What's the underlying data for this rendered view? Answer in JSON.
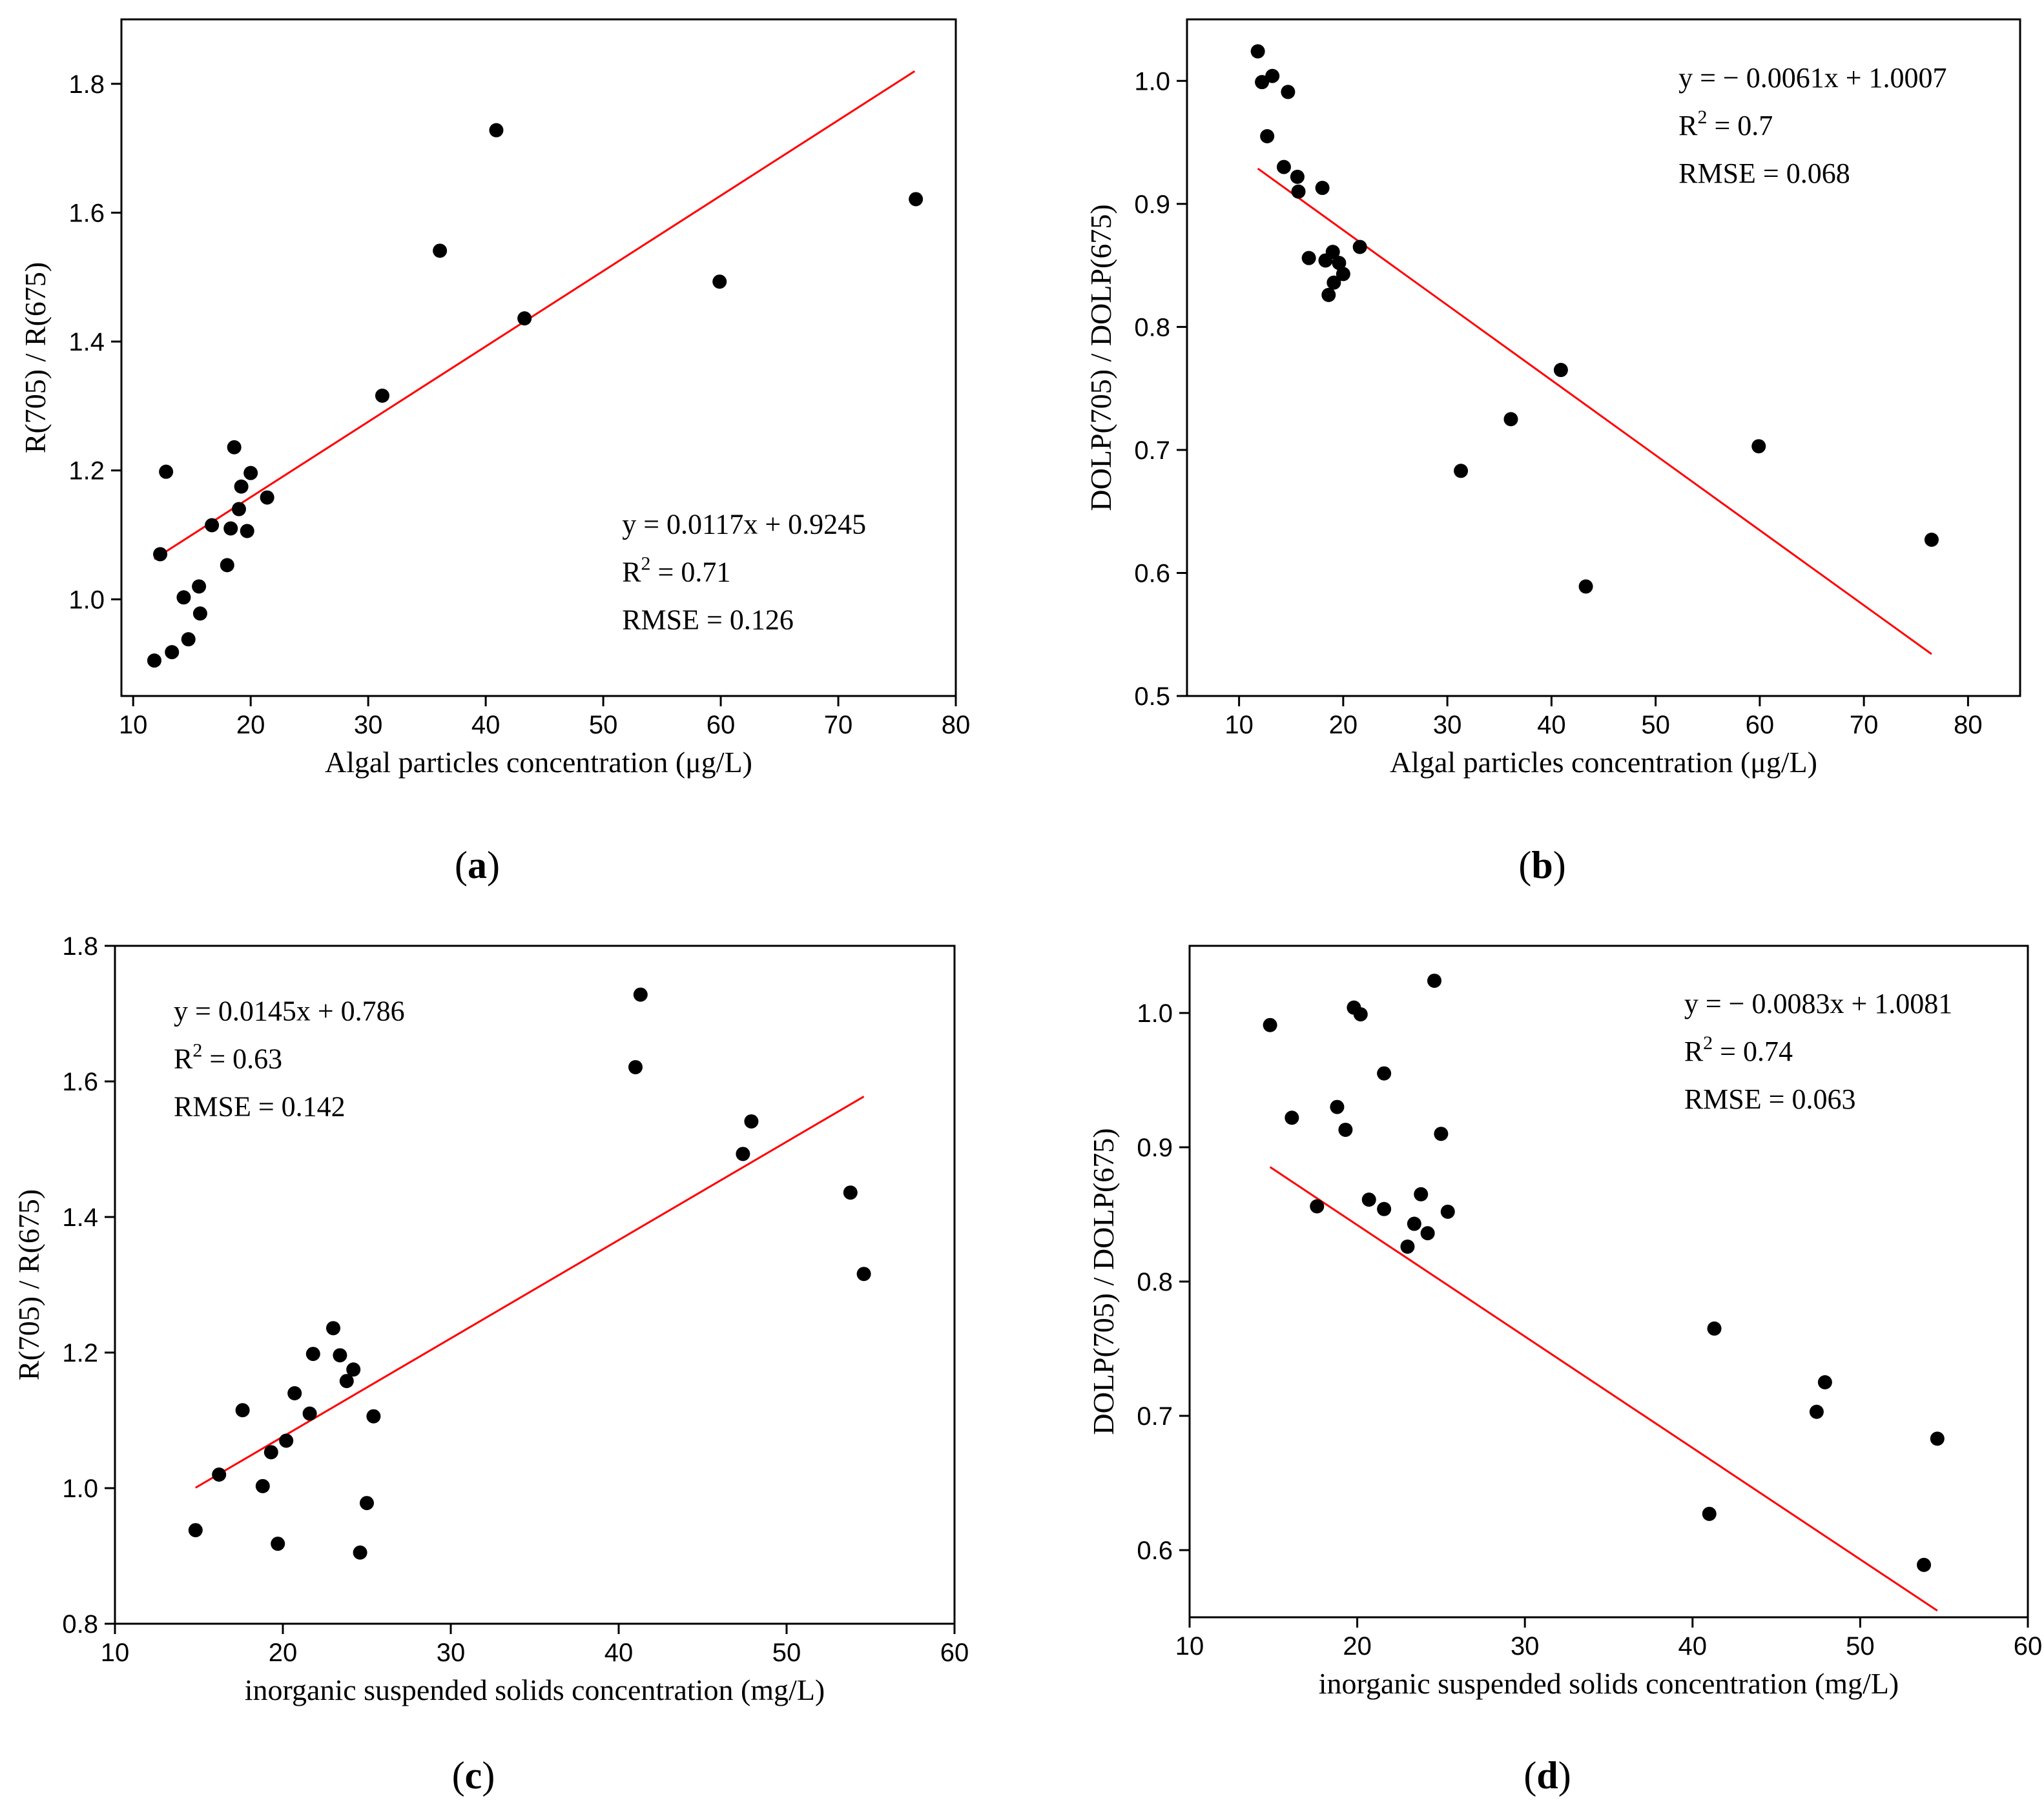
{
  "chart_data": [
    {
      "type": "scatter",
      "panel_label": "a",
      "xlabel": "Algal particles concentration (μg/L)",
      "ylabel": "R(705) / R(675)",
      "xlim": [
        9,
        80
      ],
      "ylim": [
        0.85,
        1.9
      ],
      "xticks": [
        10,
        20,
        30,
        40,
        50,
        60,
        70,
        80
      ],
      "yticks": [
        1.0,
        1.2,
        1.4,
        1.6,
        1.8
      ],
      "ytick_decimals": 1,
      "marker_color": "#000000",
      "line_color": "#ff0000",
      "annotation_position": "bottom-right",
      "annotations": {
        "equation": "y = 0.0117x + 0.9245",
        "r2_prefix": "R",
        "r2_sup": "2",
        "r2_value": " = 0.71",
        "rmse": "RMSE = 0.126"
      },
      "fit_line": {
        "slope": 0.0117,
        "intercept": 0.9245,
        "x_range": [
          11.8,
          76.5
        ]
      },
      "points": [
        {
          "x": 11.8,
          "y": 0.905
        },
        {
          "x": 12.3,
          "y": 1.07
        },
        {
          "x": 12.8,
          "y": 1.198
        },
        {
          "x": 13.3,
          "y": 0.918
        },
        {
          "x": 14.3,
          "y": 1.003
        },
        {
          "x": 14.7,
          "y": 0.938
        },
        {
          "x": 15.6,
          "y": 1.02
        },
        {
          "x": 15.7,
          "y": 0.978
        },
        {
          "x": 16.7,
          "y": 1.115
        },
        {
          "x": 18.0,
          "y": 1.053
        },
        {
          "x": 18.3,
          "y": 1.11
        },
        {
          "x": 18.6,
          "y": 1.236
        },
        {
          "x": 19.0,
          "y": 1.14
        },
        {
          "x": 19.2,
          "y": 1.175
        },
        {
          "x": 19.7,
          "y": 1.106
        },
        {
          "x": 20.0,
          "y": 1.196
        },
        {
          "x": 21.4,
          "y": 1.158
        },
        {
          "x": 31.2,
          "y": 1.316
        },
        {
          "x": 36.1,
          "y": 1.541
        },
        {
          "x": 40.9,
          "y": 1.728
        },
        {
          "x": 43.3,
          "y": 1.436
        },
        {
          "x": 59.9,
          "y": 1.493
        },
        {
          "x": 76.6,
          "y": 1.621
        }
      ]
    },
    {
      "type": "scatter",
      "panel_label": "b",
      "xlabel": "Algal particles concentration (μg/L)",
      "ylabel": "DOLP(705) / DOLP(675)",
      "xlim": [
        5,
        85
      ],
      "ylim": [
        0.5,
        1.05
      ],
      "xticks": [
        10,
        20,
        30,
        40,
        50,
        60,
        70,
        80
      ],
      "yticks": [
        0.5,
        0.6,
        0.7,
        0.8,
        0.9,
        1.0
      ],
      "ytick_decimals": 1,
      "marker_color": "#000000",
      "line_color": "#ff0000",
      "annotation_position": "top-right",
      "annotations": {
        "equation": "y = − 0.0061x + 1.0007",
        "r2_prefix": "R",
        "r2_sup": "2",
        "r2_value": " = 0.7",
        "rmse": "RMSE = 0.068"
      },
      "fit_line": {
        "slope": -0.0061,
        "intercept": 1.0007,
        "x_range": [
          11.8,
          76.5
        ]
      },
      "points": [
        {
          "x": 11.8,
          "y": 1.024
        },
        {
          "x": 12.2,
          "y": 0.999
        },
        {
          "x": 12.7,
          "y": 0.955
        },
        {
          "x": 13.2,
          "y": 1.004
        },
        {
          "x": 14.3,
          "y": 0.93
        },
        {
          "x": 14.7,
          "y": 0.991
        },
        {
          "x": 15.6,
          "y": 0.922
        },
        {
          "x": 15.7,
          "y": 0.91
        },
        {
          "x": 16.7,
          "y": 0.856
        },
        {
          "x": 18.0,
          "y": 0.913
        },
        {
          "x": 18.3,
          "y": 0.854
        },
        {
          "x": 18.6,
          "y": 0.826
        },
        {
          "x": 19.0,
          "y": 0.861
        },
        {
          "x": 19.1,
          "y": 0.836
        },
        {
          "x": 19.6,
          "y": 0.852
        },
        {
          "x": 20.0,
          "y": 0.843
        },
        {
          "x": 21.6,
          "y": 0.865
        },
        {
          "x": 31.3,
          "y": 0.683
        },
        {
          "x": 36.1,
          "y": 0.725
        },
        {
          "x": 40.9,
          "y": 0.765
        },
        {
          "x": 43.3,
          "y": 0.589
        },
        {
          "x": 59.9,
          "y": 0.703
        },
        {
          "x": 76.5,
          "y": 0.627
        }
      ]
    },
    {
      "type": "scatter",
      "panel_label": "c",
      "xlabel": "inorganic suspended solids concentration (mg/L)",
      "ylabel": "R(705) / R(675)",
      "xlim": [
        10,
        60
      ],
      "ylim": [
        0.8,
        1.8
      ],
      "xticks": [
        10,
        20,
        30,
        40,
        50,
        60
      ],
      "yticks": [
        0.8,
        1.0,
        1.2,
        1.4,
        1.6,
        1.8
      ],
      "ytick_decimals": 1,
      "marker_color": "#000000",
      "line_color": "#ff0000",
      "annotation_position": "top-left",
      "annotations": {
        "equation": "y = 0.0145x + 0.786",
        "r2_prefix": "R",
        "r2_sup": "2",
        "r2_value": " = 0.63",
        "rmse": "RMSE = 0.142"
      },
      "fit_line": {
        "slope": 0.0145,
        "intercept": 0.786,
        "x_range": [
          14.8,
          54.6
        ]
      },
      "points": [
        {
          "x": 14.8,
          "y": 0.938
        },
        {
          "x": 16.2,
          "y": 1.02
        },
        {
          "x": 17.6,
          "y": 1.115
        },
        {
          "x": 18.8,
          "y": 1.003
        },
        {
          "x": 19.3,
          "y": 1.053
        },
        {
          "x": 19.7,
          "y": 0.918
        },
        {
          "x": 20.2,
          "y": 1.07
        },
        {
          "x": 20.7,
          "y": 1.14
        },
        {
          "x": 21.6,
          "y": 1.11
        },
        {
          "x": 21.8,
          "y": 1.198
        },
        {
          "x": 23.0,
          "y": 1.236
        },
        {
          "x": 23.4,
          "y": 1.196
        },
        {
          "x": 23.8,
          "y": 1.158
        },
        {
          "x": 24.2,
          "y": 1.175
        },
        {
          "x": 24.6,
          "y": 0.905
        },
        {
          "x": 25.0,
          "y": 0.978
        },
        {
          "x": 25.4,
          "y": 1.106
        },
        {
          "x": 41.0,
          "y": 1.621
        },
        {
          "x": 41.3,
          "y": 1.728
        },
        {
          "x": 47.4,
          "y": 1.493
        },
        {
          "x": 47.9,
          "y": 1.541
        },
        {
          "x": 53.8,
          "y": 1.436
        },
        {
          "x": 54.6,
          "y": 1.316
        }
      ]
    },
    {
      "type": "scatter",
      "panel_label": "d",
      "xlabel": "inorganic suspended solids concentration (mg/L)",
      "ylabel": "DOLP(705) / DOLP(675)",
      "xlim": [
        10,
        60
      ],
      "ylim": [
        0.55,
        1.05
      ],
      "xticks": [
        10,
        20,
        30,
        40,
        50,
        60
      ],
      "yticks": [
        0.6,
        0.7,
        0.8,
        0.9,
        1.0
      ],
      "ytick_decimals": 1,
      "marker_color": "#000000",
      "line_color": "#ff0000",
      "annotation_position": "top-right",
      "annotations": {
        "equation": "y = − 0.0083x + 1.0081",
        "r2_prefix": "R",
        "r2_sup": "2",
        "r2_value": " = 0.74",
        "rmse": "RMSE = 0.063"
      },
      "fit_line": {
        "slope": -0.0083,
        "intercept": 1.0081,
        "x_range": [
          14.8,
          54.6
        ]
      },
      "points": [
        {
          "x": 14.8,
          "y": 0.991
        },
        {
          "x": 16.1,
          "y": 0.922
        },
        {
          "x": 17.6,
          "y": 0.856
        },
        {
          "x": 18.8,
          "y": 0.93
        },
        {
          "x": 19.3,
          "y": 0.913
        },
        {
          "x": 19.8,
          "y": 1.004
        },
        {
          "x": 20.2,
          "y": 0.999
        },
        {
          "x": 20.7,
          "y": 0.861
        },
        {
          "x": 21.6,
          "y": 0.854
        },
        {
          "x": 21.6,
          "y": 0.955
        },
        {
          "x": 23.0,
          "y": 0.826
        },
        {
          "x": 23.4,
          "y": 0.843
        },
        {
          "x": 23.8,
          "y": 0.865
        },
        {
          "x": 24.2,
          "y": 0.836
        },
        {
          "x": 24.6,
          "y": 1.024
        },
        {
          "x": 25.0,
          "y": 0.91
        },
        {
          "x": 25.4,
          "y": 0.852
        },
        {
          "x": 41.0,
          "y": 0.627
        },
        {
          "x": 41.3,
          "y": 0.765
        },
        {
          "x": 47.4,
          "y": 0.703
        },
        {
          "x": 47.9,
          "y": 0.725
        },
        {
          "x": 53.8,
          "y": 0.589
        },
        {
          "x": 54.6,
          "y": 0.683
        }
      ]
    }
  ]
}
